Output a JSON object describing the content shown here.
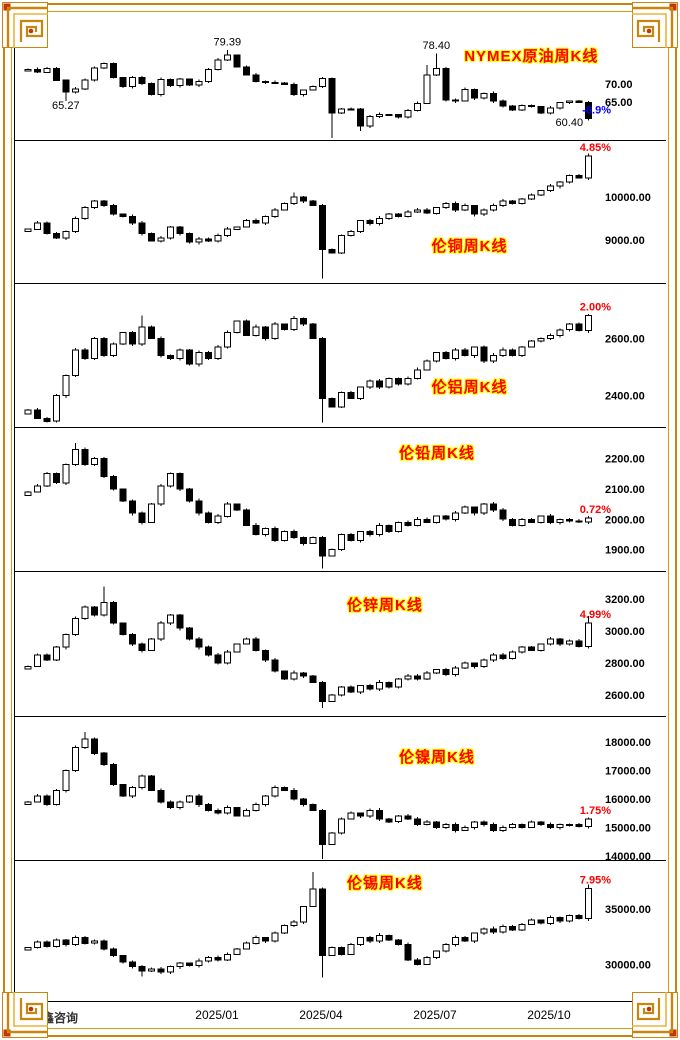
{
  "footer": {
    "brand": "威尔鑫咨询"
  },
  "x_axis": {
    "labels": [
      {
        "text": "2025/01",
        "idx": 20
      },
      {
        "text": "2025/04",
        "idx": 31
      },
      {
        "text": "2025/07",
        "idx": 43
      },
      {
        "text": "2025/10",
        "idx": 55
      }
    ]
  },
  "colors": {
    "up_fill": "#ffffff",
    "down_fill": "#000000",
    "wick": "#000000",
    "title_red": "#ff0000",
    "title_glow": "#ffff00",
    "pct_up": "#ff0000",
    "pct_down": "#0000ff",
    "frame_gold": "#c9860d",
    "frame_accent_red": "#c03508",
    "axis_text": "#000000"
  },
  "chart_data": [
    {
      "type": "candlestick",
      "title": "NYMEX原油周K线",
      "pct_label": "-6.9%",
      "pct_color": "#0000ff",
      "ylim": [
        54.5,
        89
      ],
      "y_ticks": [
        70,
        65
      ],
      "closes": [
        74.0,
        73.2,
        74.3,
        71.0,
        67.7,
        68.6,
        71.0,
        74.4,
        75.6,
        71.8,
        69.2,
        71.8,
        70.1,
        67.0,
        71.2,
        69.5,
        71.3,
        69.7,
        70.6,
        74.0,
        76.6,
        77.9,
        74.7,
        72.5,
        70.7,
        70.4,
        70.3,
        69.8,
        67.0,
        68.3,
        69.3,
        71.5,
        62.0,
        63.0,
        63.1,
        58.3,
        61.0,
        61.5,
        61.5,
        60.8,
        62.6,
        64.6,
        72.5,
        74.3,
        65.5,
        65.3,
        68.5,
        66.1,
        67.3,
        65.2,
        63.9,
        62.8,
        64.0,
        63.7,
        62.0,
        63.4,
        64.8,
        65.2,
        64.9,
        60.4
      ],
      "hi": {
        "21": 79.39,
        "42": 75.2,
        "43": 78.4
      },
      "lo": {
        "4": 65.27,
        "32": 55.12,
        "35": 57.0
      },
      "annotations": [
        {
          "text": "79.39",
          "idx": 21,
          "value": 80.6
        },
        {
          "text": "78.40",
          "idx": 43,
          "value": 79.6
        },
        {
          "text": "65.27",
          "idx": 4,
          "value": 63.0
        },
        {
          "text": "60.40",
          "idx": 57,
          "value": 58.4
        }
      ]
    },
    {
      "type": "candlestick",
      "title": "伦铜周K线",
      "pct_label": "4.85%",
      "pct_color": "#ff0000",
      "ylim": [
        8000,
        11300
      ],
      "y_ticks": [
        10000,
        9000
      ],
      "closes": [
        9250,
        9400,
        9150,
        9050,
        9200,
        9500,
        9750,
        9900,
        9800,
        9600,
        9550,
        9400,
        9150,
        8980,
        9050,
        9300,
        9150,
        8950,
        9020,
        8980,
        9100,
        9250,
        9300,
        9450,
        9400,
        9550,
        9700,
        9850,
        10000,
        9900,
        9800,
        8780,
        8700,
        9100,
        9200,
        9450,
        9380,
        9500,
        9600,
        9550,
        9650,
        9700,
        9620,
        9750,
        9850,
        9700,
        9800,
        9600,
        9700,
        9800,
        9900,
        9850,
        9950,
        10050,
        10150,
        10250,
        10350,
        10500,
        10445,
        10952
      ],
      "hi": {
        "28": 10100,
        "59": 11010
      },
      "lo": {
        "31": 8105
      },
      "annotations": []
    },
    {
      "type": "candlestick",
      "title": "伦铝周K线",
      "pct_label": "2.00%",
      "pct_color": "#ff0000",
      "ylim": [
        2290,
        2790
      ],
      "y_ticks": [
        2600,
        2400
      ],
      "closes": [
        2350,
        2320,
        2310,
        2400,
        2470,
        2560,
        2530,
        2600,
        2540,
        2580,
        2620,
        2580,
        2640,
        2600,
        2540,
        2530,
        2560,
        2510,
        2550,
        2530,
        2570,
        2620,
        2660,
        2610,
        2640,
        2600,
        2650,
        2630,
        2670,
        2650,
        2600,
        2390,
        2360,
        2410,
        2390,
        2430,
        2450,
        2430,
        2460,
        2440,
        2460,
        2490,
        2520,
        2550,
        2530,
        2560,
        2540,
        2570,
        2520,
        2540,
        2560,
        2540,
        2570,
        2590,
        2600,
        2610,
        2630,
        2650,
        2627,
        2680
      ],
      "hi": {
        "12": 2680
      },
      "lo": {
        "31": 2305
      },
      "annotations": []
    },
    {
      "type": "candlestick",
      "title": "伦铅周K线",
      "pct_label": "0.72%",
      "pct_color": "#ff0000",
      "ylim": [
        1830,
        2300
      ],
      "y_ticks": [
        2200,
        2100,
        2000,
        1900
      ],
      "closes": [
        2090,
        2110,
        2150,
        2120,
        2180,
        2230,
        2180,
        2200,
        2140,
        2100,
        2060,
        2020,
        1990,
        2050,
        2110,
        2150,
        2100,
        2060,
        2020,
        1990,
        2010,
        2050,
        2030,
        1980,
        1950,
        1970,
        1930,
        1960,
        1940,
        1920,
        1940,
        1880,
        1900,
        1950,
        1930,
        1960,
        1950,
        1980,
        1960,
        1990,
        1980,
        2000,
        1990,
        2010,
        2000,
        2020,
        2040,
        2020,
        2050,
        2030,
        2000,
        1980,
        2000,
        1990,
        2010,
        1990,
        2000,
        1995,
        1991,
        2005
      ],
      "hi": {
        "5": 2250
      },
      "lo": {
        "31": 1838
      },
      "annotations": []
    },
    {
      "type": "candlestick",
      "title": "伦锌周K线",
      "pct_label": "4.99%",
      "pct_color": "#ff0000",
      "ylim": [
        2470,
        3370
      ],
      "y_ticks": [
        3200,
        3000,
        2800,
        2600
      ],
      "closes": [
        2780,
        2850,
        2820,
        2900,
        2980,
        3080,
        3150,
        3100,
        3180,
        3050,
        2980,
        2920,
        2880,
        2950,
        3050,
        3100,
        3020,
        2950,
        2900,
        2850,
        2800,
        2870,
        2920,
        2950,
        2880,
        2820,
        2750,
        2700,
        2740,
        2720,
        2680,
        2560,
        2600,
        2650,
        2620,
        2660,
        2640,
        2680,
        2650,
        2700,
        2720,
        2700,
        2740,
        2760,
        2730,
        2770,
        2800,
        2780,
        2820,
        2850,
        2830,
        2870,
        2900,
        2880,
        2920,
        2950,
        2920,
        2940,
        2905,
        3050
      ],
      "hi": {
        "8": 3280,
        "59": 3095
      },
      "lo": {
        "31": 2520
      },
      "annotations": []
    },
    {
      "type": "candlestick",
      "title": "伦镍周K线",
      "pct_label": "1.75%",
      "pct_color": "#ff0000",
      "ylim": [
        13860,
        18870
      ],
      "y_ticks": [
        18000,
        17000,
        16000,
        15000,
        14000
      ],
      "closes": [
        15900,
        16100,
        15800,
        16300,
        17000,
        17800,
        18100,
        17600,
        17200,
        16500,
        16100,
        16400,
        16800,
        16300,
        15900,
        15700,
        15900,
        16100,
        15800,
        15600,
        15500,
        15700,
        15400,
        15600,
        15800,
        16100,
        16400,
        16300,
        16000,
        15800,
        15600,
        14400,
        14800,
        15300,
        15500,
        15400,
        15600,
        15300,
        15200,
        15400,
        15300,
        15100,
        15200,
        15000,
        15100,
        14900,
        15000,
        15200,
        15100,
        14900,
        15000,
        15100,
        15000,
        15200,
        15100,
        15000,
        15100,
        15100,
        15037,
        15300
      ],
      "hi": {
        "6": 18350
      },
      "lo": {
        "31": 13900
      },
      "annotations": []
    },
    {
      "type": "candlestick",
      "title": "伦锡周K线",
      "pct_label": "7.95%",
      "pct_color": "#ff0000",
      "ylim": [
        26700,
        39300
      ],
      "y_ticks": [
        35000,
        30000
      ],
      "closes": [
        31500,
        32000,
        31600,
        32200,
        31800,
        32400,
        31900,
        32100,
        31400,
        30800,
        30200,
        29800,
        29400,
        29600,
        29300,
        29800,
        30100,
        29900,
        30300,
        30600,
        30400,
        30900,
        31400,
        31900,
        32400,
        32100,
        32800,
        33500,
        33800,
        35200,
        36800,
        30800,
        31500,
        30900,
        31800,
        32400,
        32100,
        32600,
        32200,
        31800,
        30400,
        30000,
        30600,
        31200,
        31800,
        32400,
        32100,
        32800,
        33200,
        32900,
        33400,
        33100,
        33600,
        34000,
        33700,
        34200,
        33900,
        34400,
        34100,
        36812
      ],
      "hi": {
        "30": 38300,
        "59": 37200
      },
      "lo": {
        "12": 28900,
        "31": 28800
      },
      "annotations": []
    }
  ]
}
